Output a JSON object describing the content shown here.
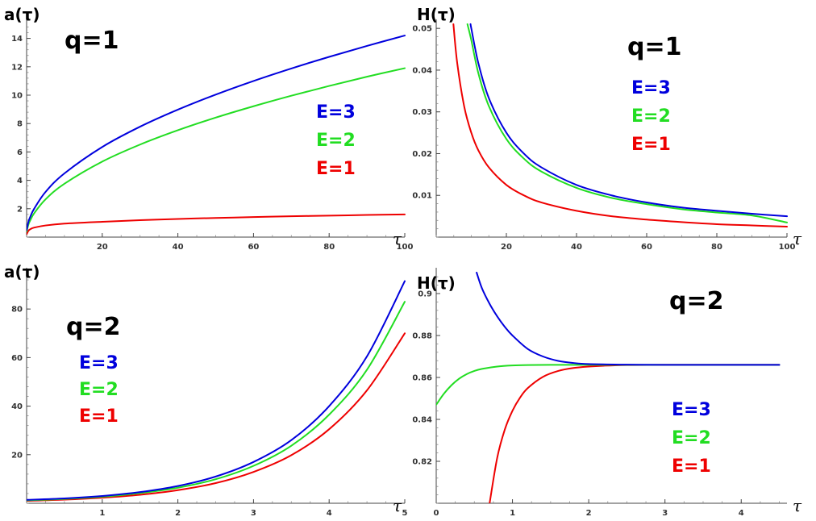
{
  "chart_data": [
    {
      "type": "line",
      "ylabel": "a(τ)",
      "xlabel": "τ",
      "annotation": "q=1",
      "xlim": [
        0,
        100
      ],
      "ylim": [
        0,
        15
      ],
      "xticks": [
        20,
        40,
        60,
        80,
        100
      ],
      "yticks": [
        2,
        4,
        6,
        8,
        10,
        12,
        14
      ],
      "series": [
        {
          "name": "E=3",
          "color": "#0000dd",
          "x": [
            0,
            0.5,
            1,
            2,
            5,
            10,
            20,
            30,
            40,
            50,
            60,
            70,
            80,
            90,
            100
          ],
          "y": [
            0.5,
            1.1,
            1.45,
            2.0,
            3.18,
            4.49,
            6.35,
            7.78,
            8.98,
            10.04,
            11.0,
            11.88,
            12.7,
            13.47,
            14.2
          ]
        },
        {
          "name": "E=2",
          "color": "#22dd22",
          "x": [
            0,
            0.5,
            1,
            2,
            5,
            10,
            20,
            30,
            40,
            50,
            60,
            70,
            80,
            90,
            100
          ],
          "y": [
            0.4,
            0.9,
            1.2,
            1.68,
            2.66,
            3.76,
            5.32,
            6.52,
            7.53,
            8.42,
            9.22,
            9.96,
            10.65,
            11.3,
            11.9
          ]
        },
        {
          "name": "E=1",
          "color": "#ee0000",
          "x": [
            0,
            0.5,
            1,
            2,
            5,
            10,
            20,
            30,
            40,
            50,
            60,
            70,
            80,
            90,
            100
          ],
          "y": [
            0.2,
            0.45,
            0.56,
            0.67,
            0.82,
            0.95,
            1.08,
            1.19,
            1.28,
            1.35,
            1.41,
            1.47,
            1.51,
            1.56,
            1.6
          ]
        }
      ],
      "legend": [
        "E=3",
        "E=2",
        "E=1"
      ]
    },
    {
      "type": "line",
      "ylabel": "H(τ)",
      "xlabel": "τ",
      "annotation": "q=1",
      "xlim": [
        0,
        100
      ],
      "ylim": [
        0,
        0.051
      ],
      "xticks": [
        20,
        40,
        60,
        80,
        100
      ],
      "yticks": [
        0.01,
        0.02,
        0.03,
        0.04,
        0.05
      ],
      "series": [
        {
          "name": "E=3",
          "color": "#0000dd",
          "x": [
            9.8,
            10,
            12,
            15,
            20,
            25,
            30,
            40,
            50,
            60,
            70,
            80,
            90,
            100
          ],
          "y": [
            0.051,
            0.05,
            0.0417,
            0.0333,
            0.025,
            0.02,
            0.0167,
            0.0125,
            0.01,
            0.0083,
            0.0071,
            0.0063,
            0.0056,
            0.005
          ]
        },
        {
          "name": "E=2",
          "color": "#22dd22",
          "x": [
            8.9,
            10,
            12,
            15,
            20,
            25,
            30,
            40,
            50,
            60,
            70,
            80,
            90,
            100
          ],
          "y": [
            0.051,
            0.0472,
            0.0393,
            0.0314,
            0.0235,
            0.0188,
            0.0157,
            0.0118,
            0.0094,
            0.0079,
            0.0067,
            0.0059,
            0.0052,
            0.0035
          ]
        },
        {
          "name": "E=1",
          "color": "#ee0000",
          "x": [
            4.9,
            6,
            8,
            10,
            12,
            15,
            20,
            25,
            30,
            40,
            50,
            60,
            70,
            80,
            90,
            100
          ],
          "y": [
            0.051,
            0.0416,
            0.0312,
            0.025,
            0.0208,
            0.0167,
            0.0125,
            0.01,
            0.0083,
            0.0063,
            0.005,
            0.0042,
            0.0036,
            0.0031,
            0.0028,
            0.0025
          ]
        }
      ],
      "legend": [
        "E=3",
        "E=2",
        "E=1"
      ]
    },
    {
      "type": "line",
      "ylabel": "a(τ)",
      "xlabel": "τ",
      "annotation": "q=2",
      "xlim": [
        0,
        5
      ],
      "ylim": [
        0,
        95
      ],
      "xticks": [
        1,
        2,
        3,
        4,
        5
      ],
      "yticks": [
        20,
        40,
        60,
        80
      ],
      "series": [
        {
          "name": "E=3",
          "color": "#0000dd",
          "x": [
            0,
            0.5,
            1,
            1.5,
            2,
            2.5,
            3,
            3.5,
            4,
            4.5,
            5
          ],
          "y": [
            1.4,
            2.0,
            3.0,
            4.6,
            7.1,
            11.0,
            17.0,
            26.0,
            40.0,
            60.5,
            91.5
          ]
        },
        {
          "name": "E=2",
          "color": "#22dd22",
          "x": [
            0,
            0.5,
            1,
            1.5,
            2,
            2.5,
            3,
            3.5,
            4,
            4.5,
            5
          ],
          "y": [
            1.2,
            1.8,
            2.7,
            4.2,
            6.4,
            9.9,
            15.4,
            23.7,
            36.5,
            55.0,
            83.0
          ]
        },
        {
          "name": "E=1",
          "color": "#ee0000",
          "x": [
            0,
            0.5,
            1,
            1.5,
            2,
            2.5,
            3,
            3.5,
            4,
            4.5,
            5
          ],
          "y": [
            1.0,
            1.5,
            2.3,
            3.5,
            5.4,
            8.3,
            12.9,
            19.8,
            30.5,
            46.5,
            70.0
          ]
        }
      ],
      "legend": [
        "E=3",
        "E=2",
        "E=1"
      ]
    },
    {
      "type": "line",
      "ylabel": "H(τ)",
      "xlabel": "τ",
      "annotation": "q=2",
      "xlim": [
        0,
        4.6
      ],
      "ylim": [
        0.8,
        0.91
      ],
      "xticks": [
        0,
        1,
        2,
        3,
        4
      ],
      "yticks": [
        0.82,
        0.84,
        0.86,
        0.88,
        0.9
      ],
      "series": [
        {
          "name": "E=3",
          "color": "#0000dd",
          "x": [
            0.53,
            0.6,
            0.7,
            0.8,
            0.9,
            1.0,
            1.2,
            1.4,
            1.6,
            1.8,
            2.0,
            2.5,
            3.0,
            4.0,
            4.5
          ],
          "y": [
            0.91,
            0.9025,
            0.8951,
            0.8891,
            0.8841,
            0.88,
            0.8736,
            0.87,
            0.8679,
            0.8669,
            0.8664,
            0.8661,
            0.866,
            0.866,
            0.866
          ]
        },
        {
          "name": "E=2",
          "color": "#22dd22",
          "x": [
            0,
            0.1,
            0.2,
            0.3,
            0.4,
            0.5,
            0.6,
            0.8,
            1.0,
            1.2,
            1.5,
            2.0,
            3.0,
            4.0,
            4.5
          ],
          "y": [
            0.847,
            0.8522,
            0.8563,
            0.8594,
            0.8616,
            0.8631,
            0.8641,
            0.8652,
            0.8657,
            0.8659,
            0.866,
            0.866,
            0.866,
            0.866,
            0.866
          ]
        },
        {
          "name": "E=1",
          "color": "#ee0000",
          "x": [
            0.7,
            0.8,
            0.9,
            1.0,
            1.1,
            1.2,
            1.4,
            1.6,
            1.8,
            2.0,
            2.2,
            2.5,
            3.0,
            4.0,
            4.5
          ],
          "y": [
            0.8,
            0.8217,
            0.8352,
            0.8441,
            0.8504,
            0.8549,
            0.8603,
            0.8631,
            0.8645,
            0.8652,
            0.8656,
            0.8659,
            0.866,
            0.866,
            0.866
          ]
        }
      ],
      "legend": [
        "E=3",
        "E=2",
        "E=1"
      ]
    }
  ]
}
